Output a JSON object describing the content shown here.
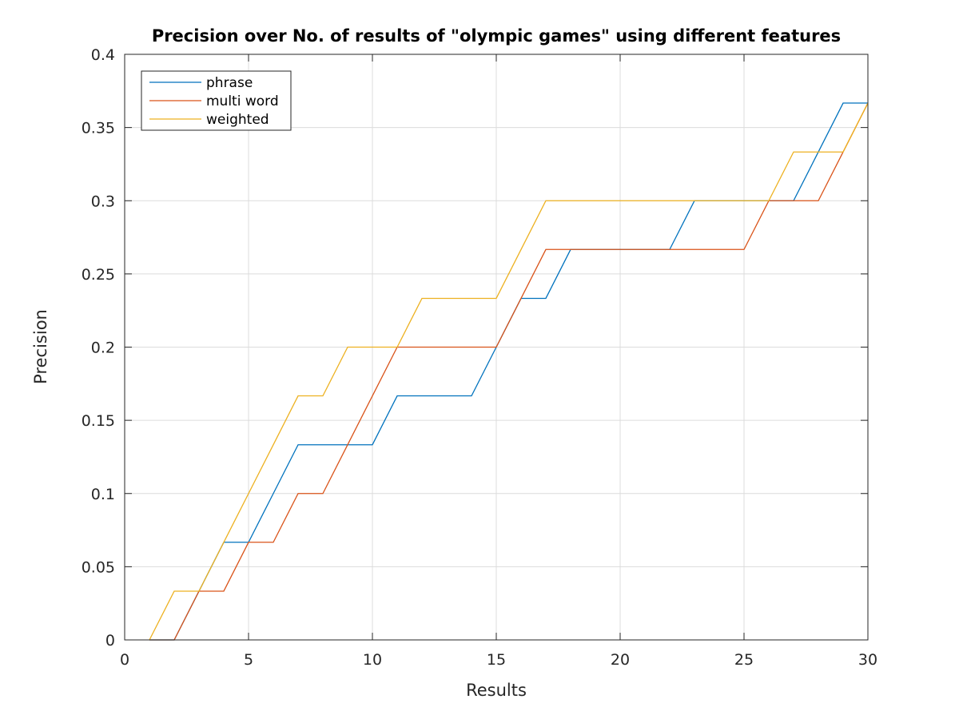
{
  "chart_data": {
    "type": "line",
    "title": "Precision over No. of results of \"olympic games\" using different features",
    "xlabel": "Results",
    "ylabel": "Precision",
    "xlim": [
      0,
      30
    ],
    "ylim": [
      0,
      0.4
    ],
    "xticks": [
      0,
      5,
      10,
      15,
      20,
      25,
      30
    ],
    "yticks": [
      0,
      0.05,
      0.1,
      0.15,
      0.2,
      0.25,
      0.3,
      0.35,
      0.4
    ],
    "xtick_labels": [
      "0",
      "5",
      "10",
      "15",
      "20",
      "25",
      "30"
    ],
    "ytick_labels": [
      "0",
      "0.05",
      "0.1",
      "0.15",
      "0.2",
      "0.25",
      "0.3",
      "0.35",
      "0.4"
    ],
    "grid": true,
    "legend_position": "top-left",
    "x": [
      1,
      2,
      3,
      4,
      5,
      6,
      7,
      8,
      9,
      10,
      11,
      12,
      13,
      14,
      15,
      16,
      17,
      18,
      19,
      20,
      21,
      22,
      23,
      24,
      25,
      26,
      27,
      28,
      29,
      30
    ],
    "series": [
      {
        "name": "phrase",
        "color": "#0072bd",
        "values": [
          0,
          0,
          0.0333,
          0.0667,
          0.0667,
          0.1,
          0.1333,
          0.1333,
          0.1333,
          0.1333,
          0.1667,
          0.1667,
          0.1667,
          0.1667,
          0.2,
          0.2333,
          0.2333,
          0.2667,
          0.2667,
          0.2667,
          0.2667,
          0.2667,
          0.3,
          0.3,
          0.3,
          0.3,
          0.3,
          0.3333,
          0.3667,
          0.3667
        ]
      },
      {
        "name": "multi word",
        "color": "#d95319",
        "values": [
          0,
          0,
          0.0333,
          0.0333,
          0.0667,
          0.0667,
          0.1,
          0.1,
          0.1333,
          0.1667,
          0.2,
          0.2,
          0.2,
          0.2,
          0.2,
          0.2333,
          0.2667,
          0.2667,
          0.2667,
          0.2667,
          0.2667,
          0.2667,
          0.2667,
          0.2667,
          0.2667,
          0.3,
          0.3,
          0.3,
          0.3333,
          0.3667
        ]
      },
      {
        "name": "weighted",
        "color": "#edb120",
        "values": [
          0,
          0.0333,
          0.0333,
          0.0667,
          0.1,
          0.1333,
          0.1667,
          0.1667,
          0.2,
          0.2,
          0.2,
          0.2333,
          0.2333,
          0.2333,
          0.2333,
          0.2667,
          0.3,
          0.3,
          0.3,
          0.3,
          0.3,
          0.3,
          0.3,
          0.3,
          0.3,
          0.3,
          0.3333,
          0.3333,
          0.3333,
          0.3667
        ]
      }
    ]
  }
}
